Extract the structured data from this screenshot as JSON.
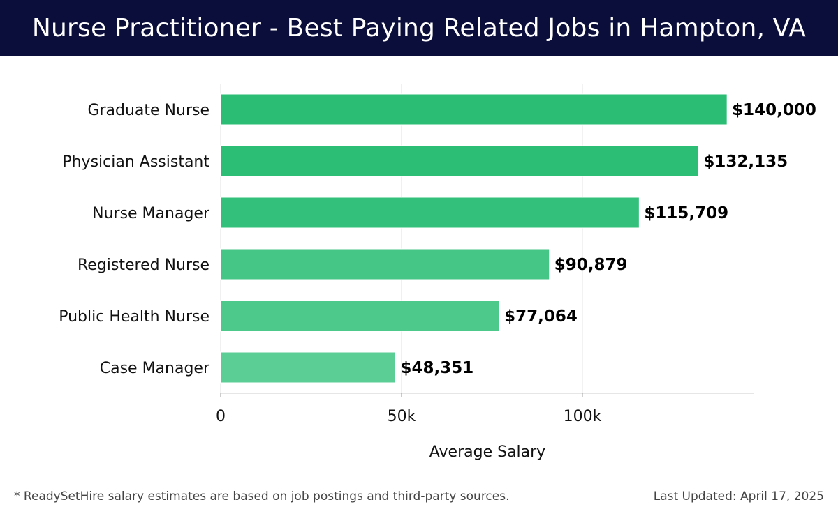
{
  "header": {
    "title": "Nurse Practitioner - Best Paying Related Jobs in Hampton, VA"
  },
  "chart_data": {
    "type": "bar",
    "orientation": "horizontal",
    "title": "Nurse Practitioner - Best Paying Related Jobs in Hampton, VA",
    "xlabel": "Average Salary",
    "ylabel": "",
    "categories": [
      "Graduate Nurse",
      "Physician Assistant",
      "Nurse Manager",
      "Registered Nurse",
      "Public Health Nurse",
      "Case Manager"
    ],
    "values": [
      140000,
      132135,
      115709,
      90879,
      77064,
      48351
    ],
    "value_labels": [
      "$140,000",
      "$132,135",
      "$115,709",
      "$90,879",
      "$77,064",
      "$48,351"
    ],
    "bar_colors": [
      "#2bbd74",
      "#2dbe76",
      "#33c07a",
      "#45c687",
      "#4cc98b",
      "#5bce96"
    ],
    "xlim": [
      0,
      147500
    ],
    "xticks": [
      0,
      50000,
      100000
    ],
    "xtick_labels": [
      "0",
      "50k",
      "100k"
    ],
    "grid": true
  },
  "footer": {
    "note": "* ReadySetHire salary estimates are based on job postings and third-party sources.",
    "updated": "Last Updated: April 17, 2025"
  }
}
